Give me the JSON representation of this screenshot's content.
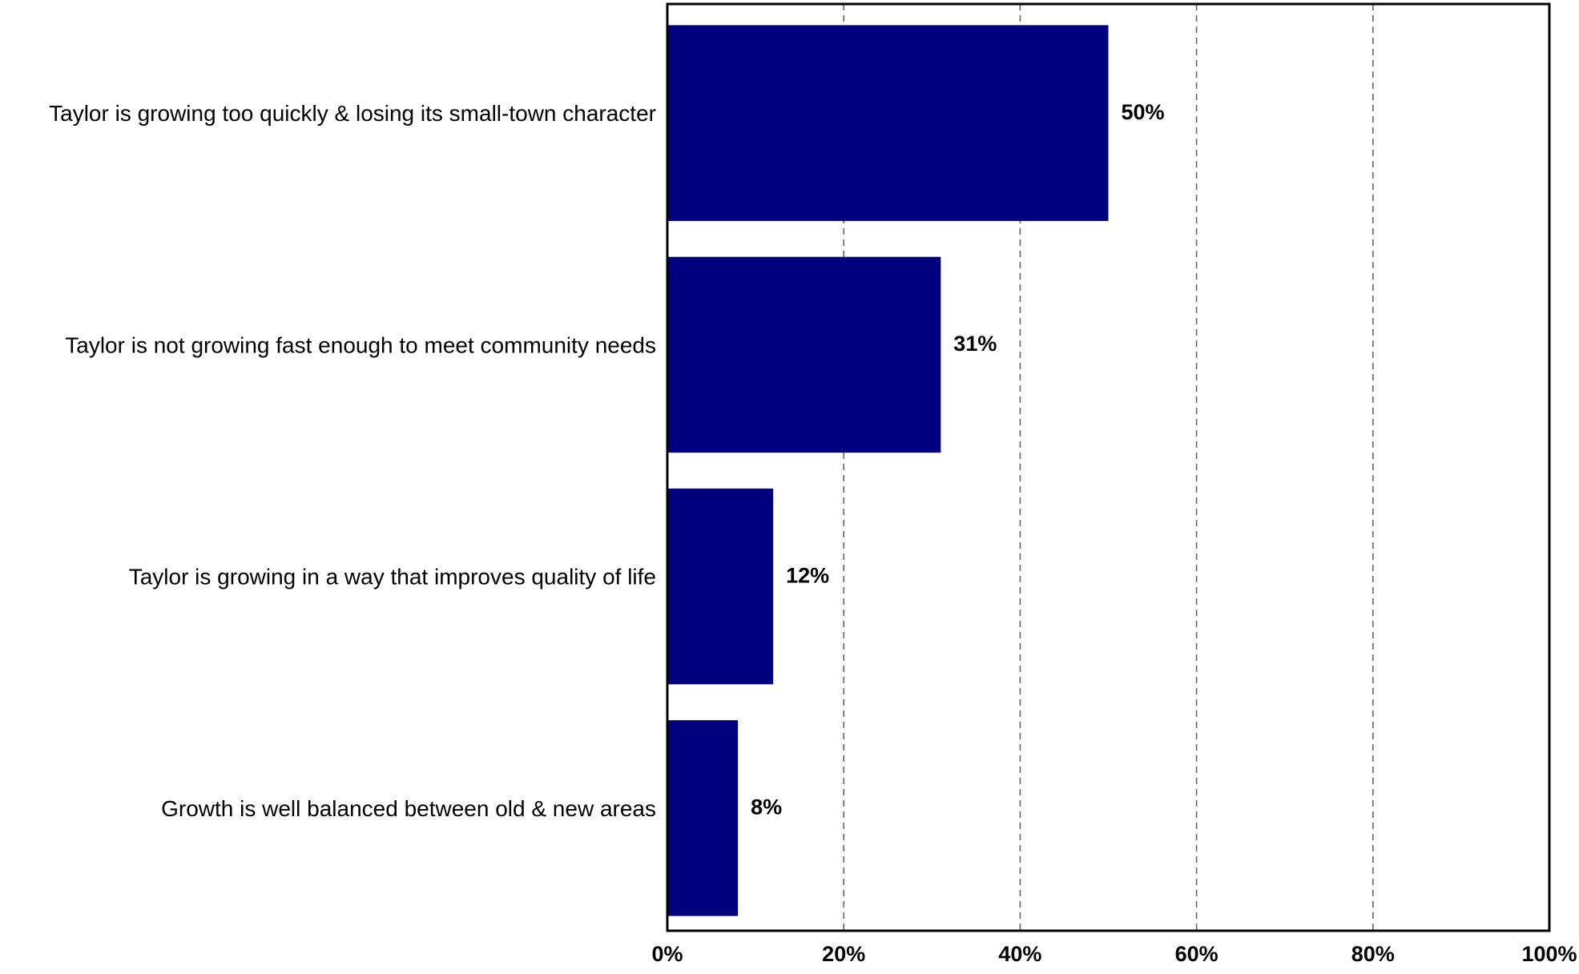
{
  "chart_data": {
    "type": "bar",
    "orientation": "horizontal",
    "categories": [
      "Taylor is growing too quickly & losing its small-town character",
      "Taylor is not growing fast enough to meet community needs",
      "Taylor is growing in a way that improves quality of life",
      "Growth is well balanced between old & new areas"
    ],
    "values": [
      50,
      31,
      12,
      8
    ],
    "value_labels": [
      "50%",
      "31%",
      "12%",
      "8%"
    ],
    "xlim": [
      0,
      100
    ],
    "x_ticks": [
      0,
      20,
      40,
      60,
      80,
      100
    ],
    "x_tick_labels": [
      "0%",
      "20%",
      "40%",
      "60%",
      "80%",
      "100%"
    ],
    "title": "",
    "xlabel": "",
    "ylabel": "",
    "grid": "vertical dashed",
    "legend": "none",
    "colors": {
      "bar": "#00007f",
      "gridline": "#666666",
      "frame": "#000000"
    }
  }
}
